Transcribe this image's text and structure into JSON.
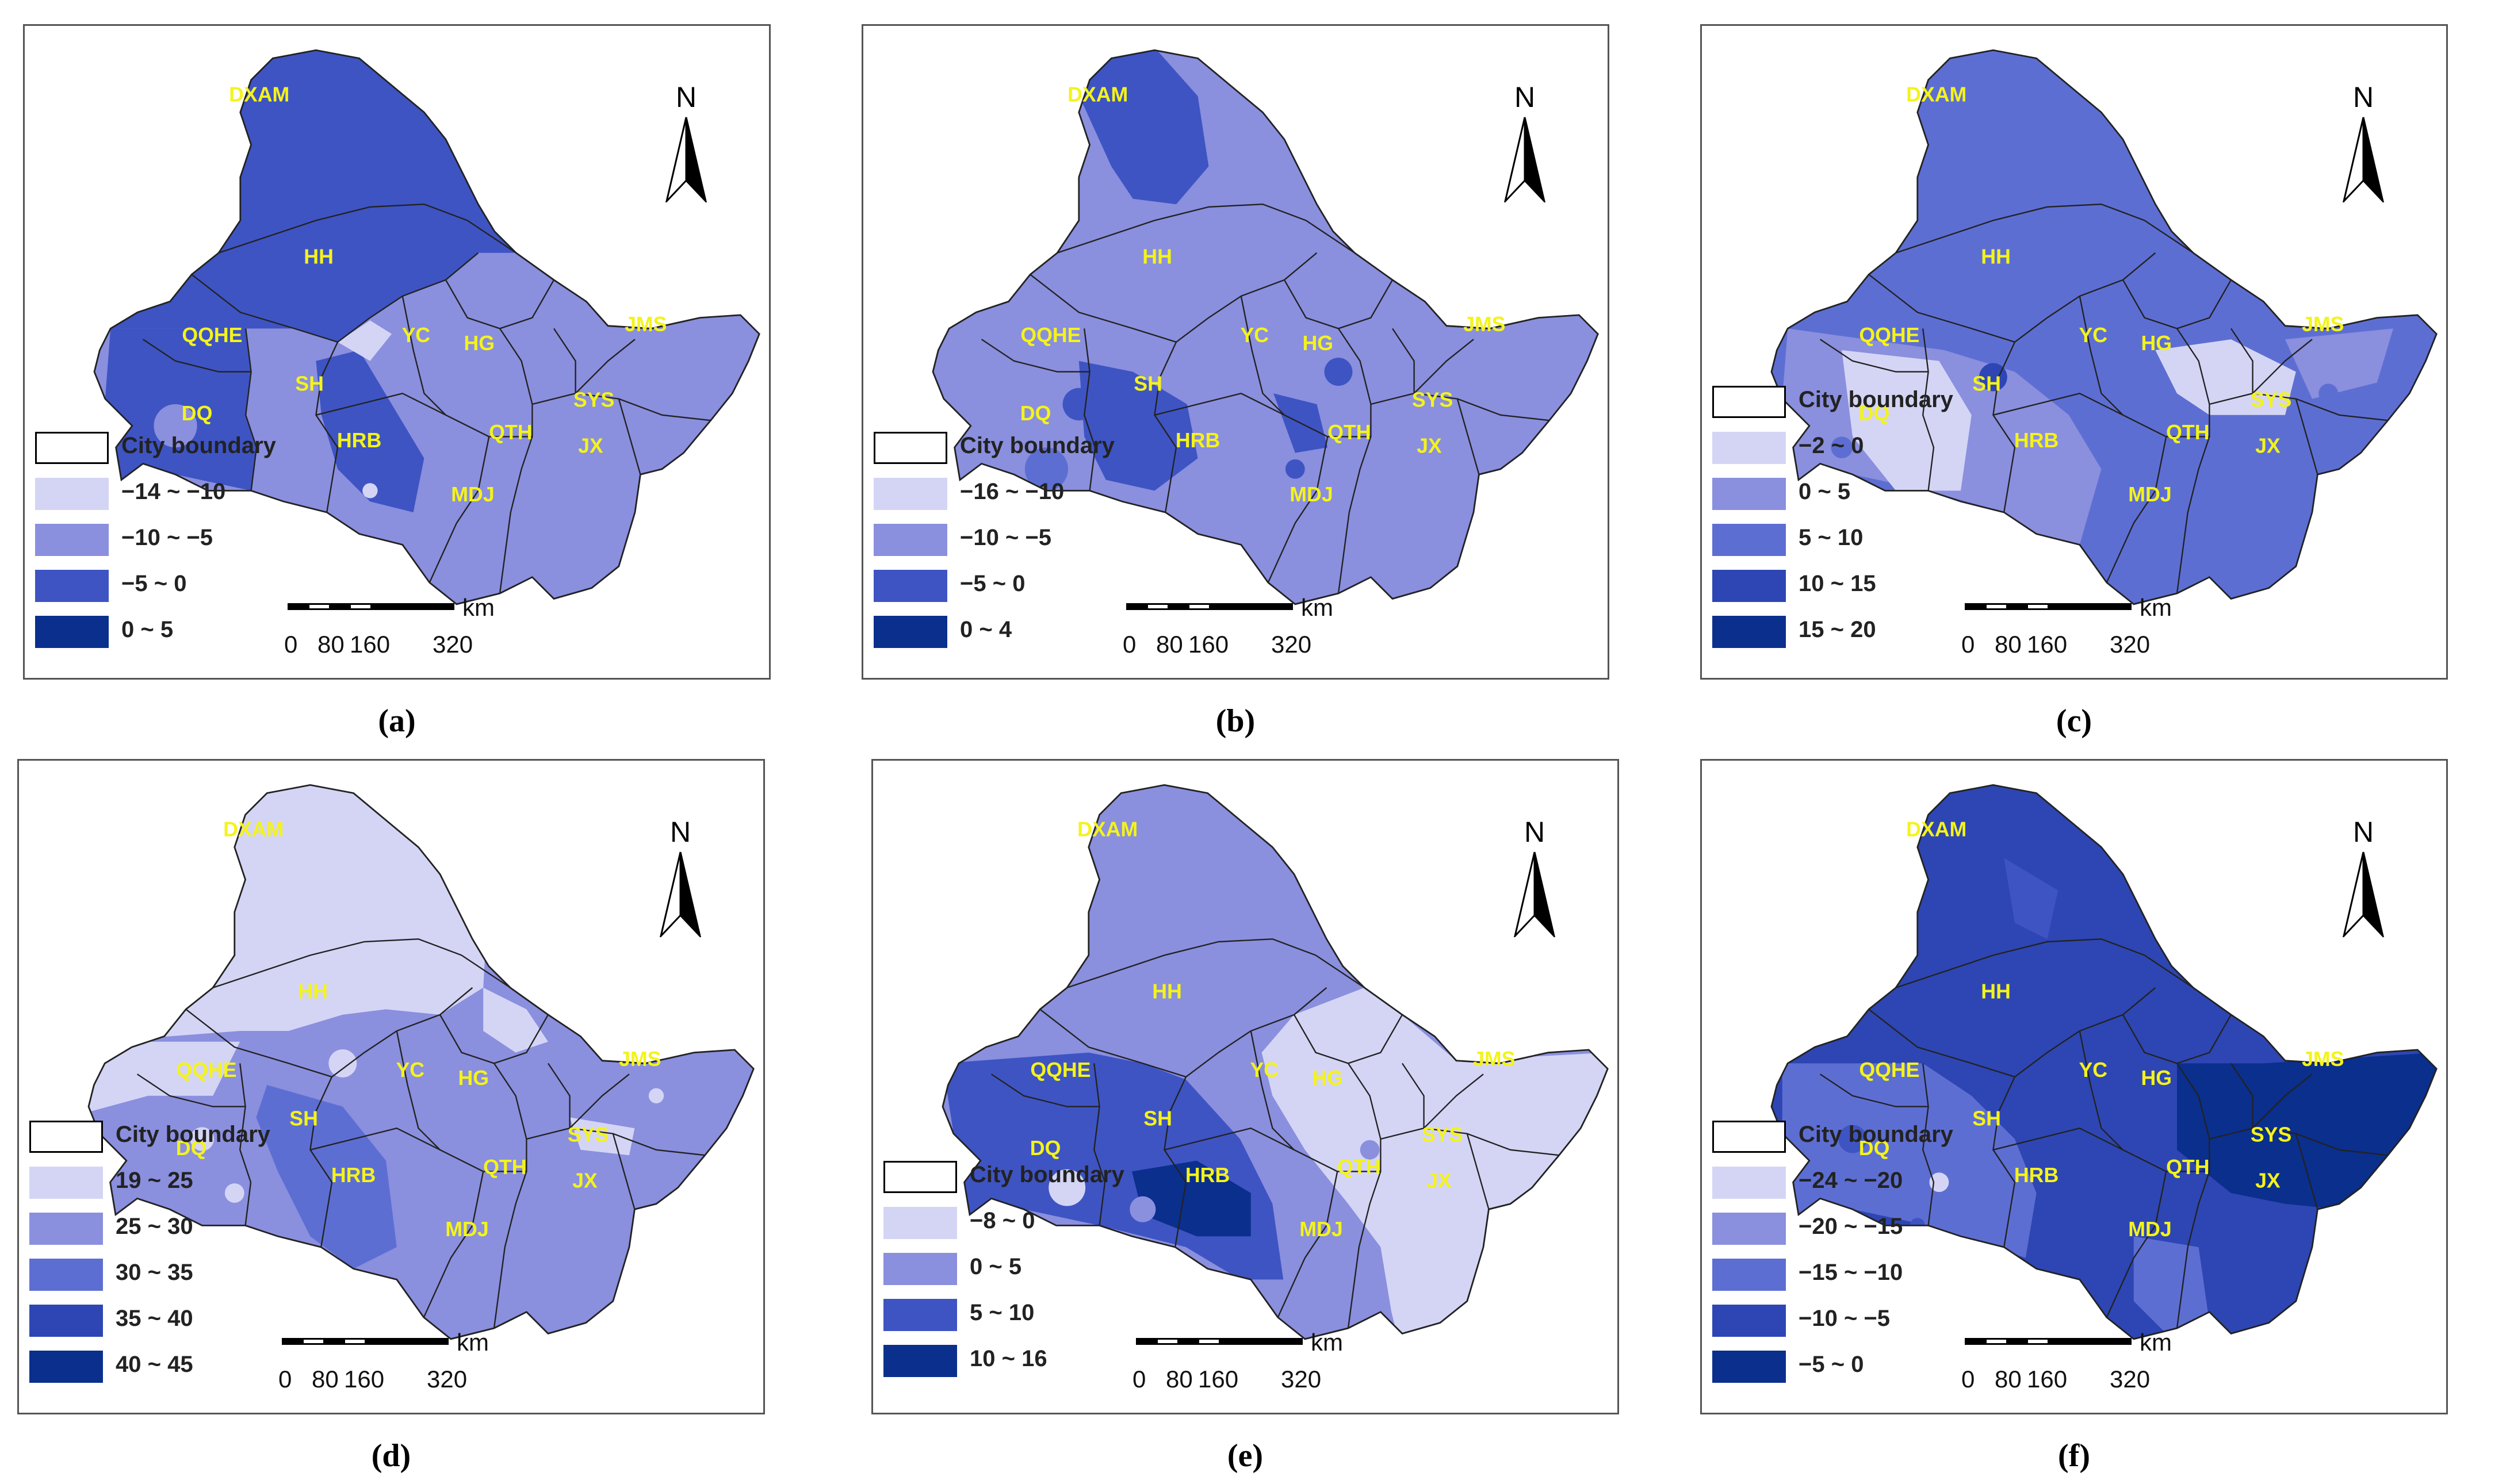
{
  "north_letter": "N",
  "legend_boundary_label": "City boundary",
  "scale": {
    "ticks": [
      "0",
      "80",
      "160",
      "320"
    ],
    "unit": "km"
  },
  "cities": [
    "DXAM",
    "HH",
    "QQHE",
    "YC",
    "HG",
    "JMS",
    "SH",
    "DQ",
    "SYS",
    "HRB",
    "QTH",
    "JX",
    "MDJ"
  ],
  "panels": [
    {
      "caption": "(a)",
      "legend": [
        {
          "label": "−14 ~ −10",
          "color": "#d4d5f5"
        },
        {
          "label": "−10 ~ −5",
          "color": "#8a8fde"
        },
        {
          "label": "−5 ~ 0",
          "color": "#3e54c3"
        },
        {
          "label": "0 ~ 5",
          "color": "#0a2f8d"
        }
      ]
    },
    {
      "caption": "(b)",
      "legend": [
        {
          "label": "−16 ~ −10",
          "color": "#d4d5f5"
        },
        {
          "label": "−10 ~ −5",
          "color": "#8a8fde"
        },
        {
          "label": "−5 ~ 0",
          "color": "#3e54c3"
        },
        {
          "label": "0 ~ 4",
          "color": "#0a2f8d"
        }
      ]
    },
    {
      "caption": "(c)",
      "legend": [
        {
          "label": "−2 ~ 0",
          "color": "#d4d5f5"
        },
        {
          "label": "0 ~ 5",
          "color": "#8a8fde"
        },
        {
          "label": "5 ~ 10",
          "color": "#5d6ed3"
        },
        {
          "label": "10 ~ 15",
          "color": "#2e46b3"
        },
        {
          "label": "15 ~ 20",
          "color": "#0a2f8d"
        }
      ]
    },
    {
      "caption": "(d)",
      "legend": [
        {
          "label": "19 ~ 25",
          "color": "#d4d5f5"
        },
        {
          "label": "25 ~ 30",
          "color": "#8a8fde"
        },
        {
          "label": "30 ~ 35",
          "color": "#5d6ed3"
        },
        {
          "label": "35 ~ 40",
          "color": "#2e46b3"
        },
        {
          "label": "40 ~ 45",
          "color": "#0a2f8d"
        }
      ]
    },
    {
      "caption": "(e)",
      "legend": [
        {
          "label": "−8 ~ 0",
          "color": "#d4d5f5"
        },
        {
          "label": "0 ~ 5",
          "color": "#8a8fde"
        },
        {
          "label": "5  ~ 10",
          "color": "#3e54c3"
        },
        {
          "label": "10 ~ 16",
          "color": "#0a2f8d"
        }
      ]
    },
    {
      "caption": "(f)",
      "legend": [
        {
          "label": "−24 ~ −20",
          "color": "#d4d5f5"
        },
        {
          "label": "−20 ~ −15",
          "color": "#8a8fde"
        },
        {
          "label": "−15 ~ −10",
          "color": "#5d6ed3"
        },
        {
          "label": "−10 ~ −5",
          "color": "#2e46b3"
        },
        {
          "label": "−5 ~ 0",
          "color": "#0a2f8d"
        }
      ]
    }
  ]
}
